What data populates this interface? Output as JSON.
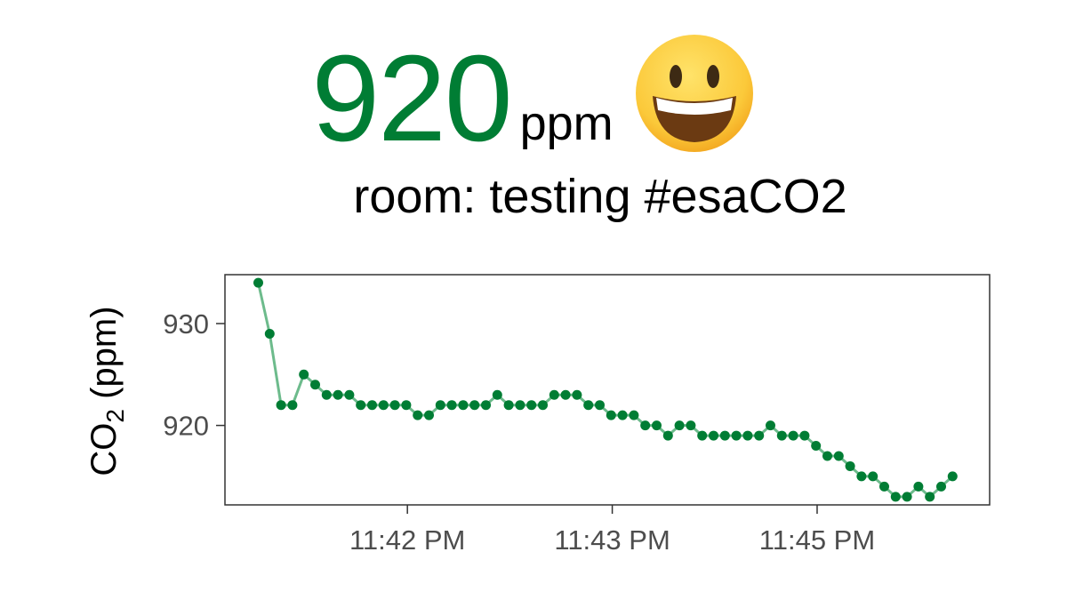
{
  "header": {
    "value": "920",
    "unit": "ppm",
    "room_line": "room: testing #esaCO2",
    "emoji": "grinning-face-emoji"
  },
  "colors": {
    "value": "#007d34",
    "point": "#007d34",
    "line": "#6dbb8c",
    "axis": "#333333",
    "tick_text": "#4d4d4d"
  },
  "chart_data": {
    "type": "line",
    "title": "",
    "xlabel": "",
    "ylabel_main": "CO",
    "ylabel_sub": "2",
    "ylabel_tail": "(ppm)",
    "x_ticks": [
      {
        "label": "11:42 PM",
        "index": 13.1
      },
      {
        "label": "11:43 PM",
        "index": 31.1
      },
      {
        "label": "11:45 PM",
        "index": 49.1
      }
    ],
    "y_ticks": [
      920,
      930
    ],
    "ylim": [
      912.2,
      934.8
    ],
    "grid": false,
    "series": [
      {
        "values": [
          934,
          929,
          922,
          922,
          925,
          924,
          923,
          923,
          923,
          922,
          922,
          922,
          922,
          922,
          921,
          921,
          922,
          922,
          922,
          922,
          922,
          923,
          922,
          922,
          922,
          922,
          923,
          923,
          923,
          922,
          922,
          921,
          921,
          921,
          920,
          920,
          919,
          920,
          920,
          919,
          919,
          919,
          919,
          919,
          919,
          920,
          919,
          919,
          919,
          918,
          917,
          917,
          916,
          915,
          915,
          914,
          913,
          913,
          914,
          913,
          914,
          915
        ]
      }
    ]
  }
}
